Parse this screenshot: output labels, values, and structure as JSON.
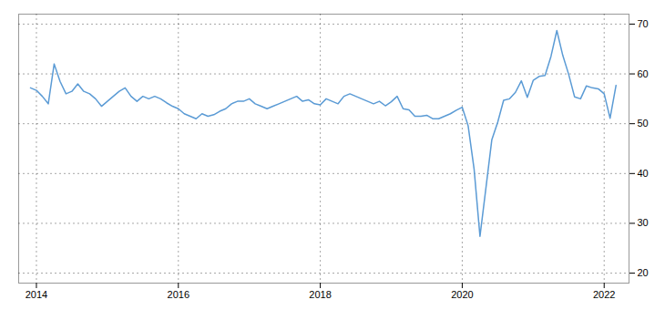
{
  "chart_data": {
    "type": "line",
    "x": [
      2013.917,
      2014.0,
      2014.083,
      2014.167,
      2014.25,
      2014.333,
      2014.417,
      2014.5,
      2014.583,
      2014.667,
      2014.75,
      2014.833,
      2014.917,
      2015.0,
      2015.083,
      2015.167,
      2015.25,
      2015.333,
      2015.417,
      2015.5,
      2015.583,
      2015.667,
      2015.75,
      2015.833,
      2015.917,
      2016.0,
      2016.083,
      2016.167,
      2016.25,
      2016.333,
      2016.417,
      2016.5,
      2016.583,
      2016.667,
      2016.75,
      2016.833,
      2016.917,
      2017.0,
      2017.083,
      2017.167,
      2017.25,
      2017.333,
      2017.417,
      2017.5,
      2017.583,
      2017.667,
      2017.75,
      2017.833,
      2017.917,
      2018.0,
      2018.083,
      2018.167,
      2018.25,
      2018.333,
      2018.417,
      2018.5,
      2018.583,
      2018.667,
      2018.75,
      2018.833,
      2018.917,
      2019.0,
      2019.083,
      2019.167,
      2019.25,
      2019.333,
      2019.417,
      2019.5,
      2019.583,
      2019.667,
      2019.75,
      2019.833,
      2019.917,
      2020.0,
      2020.083,
      2020.167,
      2020.25,
      2020.333,
      2020.417,
      2020.5,
      2020.583,
      2020.667,
      2020.75,
      2020.833,
      2020.917,
      2021.0,
      2021.083,
      2021.167,
      2021.25,
      2021.333,
      2021.417,
      2021.5,
      2021.583,
      2021.667,
      2021.75,
      2021.833,
      2021.917,
      2022.0,
      2022.083,
      2022.167
    ],
    "values": [
      57.2,
      56.7,
      55.5,
      54.0,
      62.0,
      58.5,
      56.0,
      56.5,
      58.0,
      56.5,
      56.0,
      55.0,
      53.5,
      54.5,
      55.5,
      56.5,
      57.2,
      55.5,
      54.5,
      55.5,
      55.0,
      55.5,
      55.0,
      54.2,
      53.5,
      53.0,
      52.0,
      51.5,
      51.0,
      52.0,
      51.5,
      51.8,
      52.5,
      53.0,
      54.0,
      54.5,
      54.5,
      55.0,
      54.0,
      53.5,
      53.0,
      53.5,
      54.0,
      54.5,
      55.0,
      55.5,
      54.5,
      54.8,
      54.0,
      53.8,
      55.0,
      54.5,
      54.0,
      55.5,
      56.0,
      55.5,
      55.0,
      54.5,
      54.0,
      54.5,
      53.6,
      54.4,
      55.5,
      53.0,
      52.8,
      51.5,
      51.5,
      51.7,
      51.0,
      51.0,
      51.5,
      52.0,
      52.7,
      53.3,
      49.6,
      40.9,
      27.4,
      37.0,
      46.8,
      50.3,
      54.7,
      55.0,
      56.3,
      58.6,
      55.3,
      58.7,
      59.5,
      59.7,
      63.5,
      68.7,
      63.7,
      59.9,
      55.4,
      55.0,
      57.6,
      57.2,
      57.0,
      56.0,
      51.1,
      57.7
    ],
    "color": "#5b9bd5",
    "xlim": [
      2013.75,
      2022.35
    ],
    "xticks": [
      2014,
      2016,
      2018,
      2020,
      2022
    ],
    "ylim": [
      18,
      72
    ],
    "yticks": [
      20,
      30,
      40,
      50,
      60,
      70
    ],
    "grid": true
  }
}
